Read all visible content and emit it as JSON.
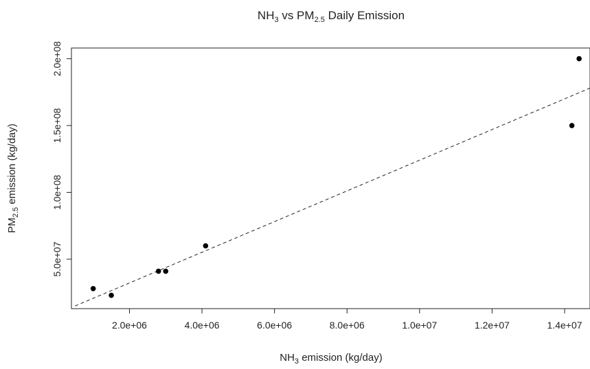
{
  "chart_data": {
    "type": "scatter",
    "title": {
      "pre": "NH",
      "sub1": "3",
      "mid": " vs PM",
      "sub2": "2.5",
      "post": " Daily Emission"
    },
    "xlabel": {
      "pre": "NH",
      "sub": "3",
      "post": " emission (kg/day)"
    },
    "ylabel": {
      "pre": "PM",
      "sub": "2.5",
      "post": " emission (kg/day)"
    },
    "xlim": [
      400000,
      14700000
    ],
    "ylim": [
      13000000,
      208000000
    ],
    "x_ticks": [
      2000000,
      4000000,
      6000000,
      8000000,
      10000000,
      12000000,
      14000000
    ],
    "x_tick_labels": [
      "2.0e+06",
      "4.0e+06",
      "6.0e+06",
      "8.0e+06",
      "1.0e+07",
      "1.2e+07",
      "1.4e+07"
    ],
    "y_ticks": [
      50000000,
      100000000,
      150000000,
      200000000
    ],
    "y_tick_labels": [
      "5.0e+07",
      "1.0e+08",
      "1.5e+08",
      "2.0e+08"
    ],
    "points": [
      {
        "x": 1000000,
        "y": 28000000
      },
      {
        "x": 1500000,
        "y": 23000000
      },
      {
        "x": 2800000,
        "y": 41000000
      },
      {
        "x": 3000000,
        "y": 41000000
      },
      {
        "x": 4100000,
        "y": 60000000
      },
      {
        "x": 14200000,
        "y": 150000000
      },
      {
        "x": 14400000,
        "y": 200000000
      }
    ],
    "fit_line": {
      "style": "dashed",
      "p1": {
        "x": 500000,
        "y": 15000000
      },
      "p2": {
        "x": 14700000,
        "y": 178000000
      }
    },
    "grid": false,
    "legend": "none"
  }
}
